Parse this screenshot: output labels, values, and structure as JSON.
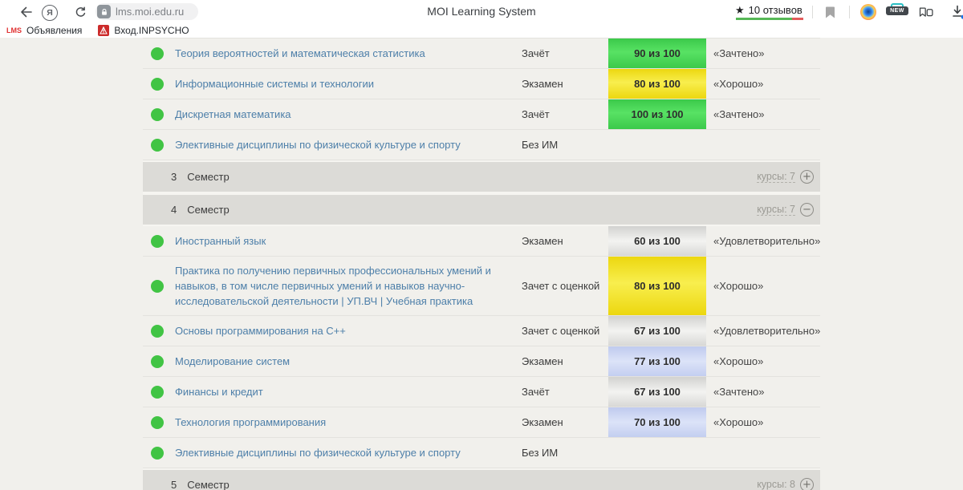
{
  "toolbar": {
    "url": "lms.moi.edu.ru",
    "page_title": "MOI Learning System",
    "yandex_letter": "Я",
    "reviews_star": "★",
    "reviews_label": "10 отзывов"
  },
  "bookmarks_bar": {
    "items": [
      {
        "favicon_text": "LMS",
        "label": "Объявления"
      },
      {
        "favicon_text": "",
        "label": "Вход.INPSYCHO"
      }
    ]
  },
  "icons": {
    "new_badge": "NEW",
    "plus": "+",
    "minus": "−"
  },
  "colors": {
    "status_dot": "#41c444",
    "course_link": "#4d7fa9",
    "score_green": "#4fdd5c",
    "score_yellow": "#f2df1d",
    "score_silver": "#e4e4e2",
    "score_blue": "#cbd5f3",
    "rating_green": "#57b857",
    "rating_red": "#e35b5b"
  },
  "table": {
    "rows": [
      {
        "type": "course",
        "name": "Теория вероятностей и математическая статистика",
        "control": "Зачёт",
        "score": "90 из 100",
        "score_color": "green",
        "verdict": "«Зачтено»"
      },
      {
        "type": "course",
        "name": "Информационные системы и технологии",
        "control": "Экзамен",
        "score": "80 из 100",
        "score_color": "yellow",
        "verdict": "«Хорошо»"
      },
      {
        "type": "course",
        "name": "Дискретная математика",
        "control": "Зачёт",
        "score": "100 из 100",
        "score_color": "green",
        "verdict": "«Зачтено»"
      },
      {
        "type": "course",
        "name": "Элективные дисциплины по физической культуре и спорту",
        "control": "Без ИМ",
        "score": null,
        "score_color": null,
        "verdict": null
      },
      {
        "type": "semester",
        "number": "3",
        "label": "Семестр",
        "courses_label": "курсы: 7",
        "toggle": "plus"
      },
      {
        "type": "semester",
        "number": "4",
        "label": "Семестр",
        "courses_label": "курсы: 7",
        "toggle": "minus"
      },
      {
        "type": "course",
        "name": "Иностранный язык",
        "control": "Экзамен",
        "score": "60 из 100",
        "score_color": "silver",
        "verdict": "«Удовлетворительно»"
      },
      {
        "type": "course",
        "name": "Практика по получению первичных профессиональных умений и навыков, в том числе первичных умений и навыков научно-исследовательской деятельности | УП.ВЧ | Учебная практика",
        "control": "Зачет с оценкой",
        "score": "80 из 100",
        "score_color": "yellow",
        "verdict": "«Хорошо»"
      },
      {
        "type": "course",
        "name": "Основы программирования на C++",
        "control": "Зачет с оценкой",
        "score": "67 из 100",
        "score_color": "silver",
        "verdict": "«Удовлетворительно»"
      },
      {
        "type": "course",
        "name": "Моделирование систем",
        "control": "Экзамен",
        "score": "77 из 100",
        "score_color": "blue",
        "verdict": "«Хорошо»"
      },
      {
        "type": "course",
        "name": "Финансы и кредит",
        "control": "Зачёт",
        "score": "67 из 100",
        "score_color": "silver",
        "verdict": "«Зачтено»"
      },
      {
        "type": "course",
        "name": "Технология программирования",
        "control": "Экзамен",
        "score": "70 из 100",
        "score_color": "blue",
        "verdict": "«Хорошо»"
      },
      {
        "type": "course",
        "name": "Элективные дисциплины по физической культуре и спорту",
        "control": "Без ИМ",
        "score": null,
        "score_color": null,
        "verdict": null
      },
      {
        "type": "semester",
        "number": "5",
        "label": "Семестр",
        "courses_label": "курсы: 8",
        "toggle": "plus"
      }
    ]
  }
}
